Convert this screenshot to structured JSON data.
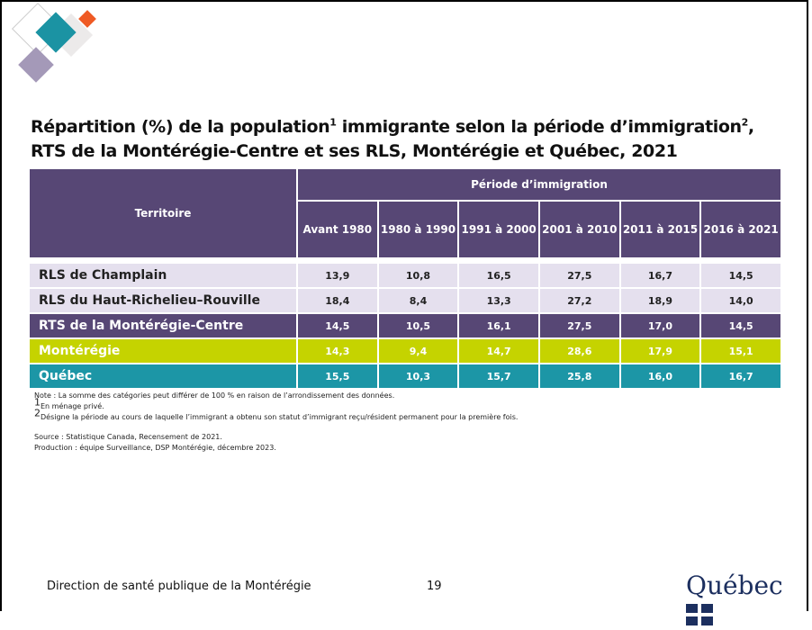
{
  "title": {
    "line1": [
      "Répartition (%) de la population",
      "1",
      " immigrante selon la période d’immigration",
      "2",
      ","
    ],
    "line2": "RTS de la Montérégie-Centre et ses RLS, Montérégie et Québec, 2021"
  },
  "table": {
    "territory_header": "Territoire",
    "group_header": "Période d’immigration",
    "columns": [
      "Avant 1980",
      "1980 à 1990",
      "1991 à 2000",
      "2001 à 2010",
      "2011 à 2015",
      "2016 à 2021"
    ],
    "rows": [
      {
        "label": "RLS de Champlain",
        "values": [
          "13,9",
          "10,8",
          "16,5",
          "27,5",
          "16,7",
          "14,5"
        ]
      },
      {
        "label": "RLS du Haut-Richelieu–Rouville",
        "values": [
          "18,4",
          "8,4",
          "13,3",
          "27,2",
          "18,9",
          "14,0"
        ]
      },
      {
        "label": "RTS de la Montérégie-Centre",
        "values": [
          "14,5",
          "10,5",
          "16,1",
          "27,5",
          "17,0",
          "14,5"
        ]
      },
      {
        "label": "Montérégie",
        "values": [
          "14,3",
          "9,4",
          "14,7",
          "28,6",
          "17,9",
          "15,1"
        ]
      },
      {
        "label": "Québec",
        "values": [
          "15,5",
          "10,3",
          "15,7",
          "25,8",
          "16,0",
          "16,7"
        ]
      }
    ]
  },
  "notes": {
    "note": "Note : La somme des catégories peut différer de 100 % en raison de l’arrondissement des données.",
    "footnote1": {
      "mark": "1",
      "text": "En ménage privé."
    },
    "footnote2": {
      "mark": "2",
      "text": "Désigne la période au cours de laquelle l’immigrant a obtenu son statut d’immigrant reçu/résident permanent pour la première fois."
    },
    "source": "Source : Statistique Canada, Recensement de 2021.",
    "production": "Production : équipe Surveillance, DSP Montérégie, décembre 2023."
  },
  "footer": {
    "organization": "Direction de santé publique de la Montérégie",
    "page": "19",
    "logo": "Québec"
  }
}
